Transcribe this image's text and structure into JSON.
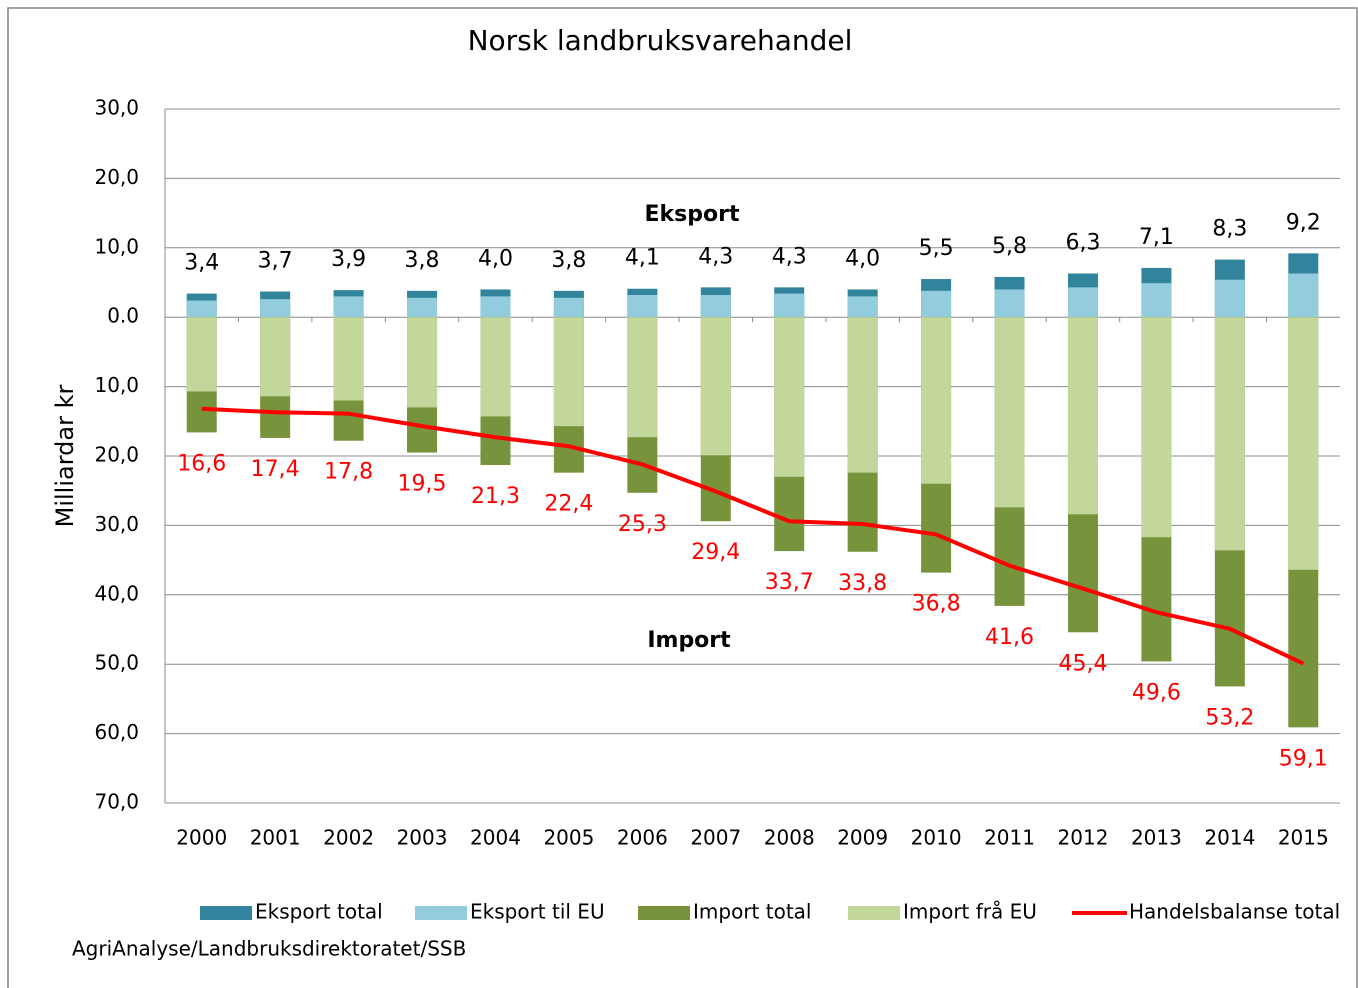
{
  "chart_data": {
    "type": "bar",
    "title": "Norsk landbruksvarehandel",
    "y_label": "Milliardar kr",
    "annotations": [
      "Eksport",
      "Import"
    ],
    "source": "AgriAnalyse/Landbruksdirektoratet/SSB",
    "categories": [
      "2000",
      "2001",
      "2002",
      "2003",
      "2004",
      "2005",
      "2006",
      "2007",
      "2008",
      "2009",
      "2010",
      "2011",
      "2012",
      "2013",
      "2014",
      "2015"
    ],
    "series": [
      {
        "name": "Eksport total",
        "type": "bar",
        "color": "#31849b",
        "label_color": "#000000",
        "values": [
          3.4,
          3.7,
          3.9,
          3.8,
          4.0,
          3.8,
          4.1,
          4.3,
          4.3,
          4.0,
          5.5,
          5.8,
          6.3,
          7.1,
          8.3,
          9.2
        ],
        "value_labels": [
          "3,4",
          "3,7",
          "3,9",
          "3,8",
          "4,0",
          "3,8",
          "4,1",
          "4,3",
          "4,3",
          "4,0",
          "5,5",
          "5,8",
          "6,3",
          "7,1",
          "8,3",
          "9,2"
        ]
      },
      {
        "name": "Eksport til EU",
        "type": "bar",
        "color": "#93cddd",
        "values": [
          2.4,
          2.6,
          3.0,
          2.8,
          3.0,
          2.8,
          3.2,
          3.2,
          3.4,
          3.0,
          3.8,
          4.0,
          4.3,
          4.9,
          5.4,
          6.3
        ]
      },
      {
        "name": "Import total",
        "type": "bar",
        "color": "#77933c",
        "label_color": "#ff0000",
        "values": [
          -16.6,
          -17.4,
          -17.8,
          -19.5,
          -21.3,
          -22.4,
          -25.3,
          -29.4,
          -33.7,
          -33.8,
          -36.8,
          -41.6,
          -45.4,
          -49.6,
          -53.2,
          -59.1
        ],
        "value_labels": [
          "16,6",
          "17,4",
          "17,8",
          "19,5",
          "21,3",
          "22,4",
          "25,3",
          "29,4",
          "33,7",
          "33,8",
          "36,8",
          "41,6",
          "45,4",
          "49,6",
          "53,2",
          "59,1"
        ]
      },
      {
        "name": "Import frå EU",
        "type": "bar",
        "color": "#c3d69b",
        "values": [
          -10.7,
          -11.4,
          -12.0,
          -13.0,
          -14.3,
          -15.7,
          -17.3,
          -19.9,
          -23.0,
          -22.4,
          -24.0,
          -27.4,
          -28.4,
          -31.7,
          -33.6,
          -36.4
        ]
      },
      {
        "name": "Handelsbalanse total",
        "type": "line",
        "color": "#ff0000",
        "values": [
          -13.2,
          -13.7,
          -13.9,
          -15.7,
          -17.3,
          -18.6,
          -21.2,
          -25.1,
          -29.4,
          -29.8,
          -31.3,
          -35.8,
          -39.1,
          -42.5,
          -44.9,
          -49.9
        ]
      }
    ],
    "ylim": [
      -70,
      30
    ],
    "yticks": [
      {
        "value": 30,
        "label": "30,0"
      },
      {
        "value": 20,
        "label": "20,0"
      },
      {
        "value": 10,
        "label": "10,0"
      },
      {
        "value": 0,
        "label": "0.0"
      },
      {
        "value": -10,
        "label": "10,0"
      },
      {
        "value": -20,
        "label": "20,0"
      },
      {
        "value": -30,
        "label": "30,0"
      },
      {
        "value": -40,
        "label": "40,0"
      },
      {
        "value": -50,
        "label": "50,0"
      },
      {
        "value": -60,
        "label": "60,0"
      },
      {
        "value": -70,
        "label": "70,0"
      }
    ],
    "grid": true,
    "legend": "bottom"
  }
}
